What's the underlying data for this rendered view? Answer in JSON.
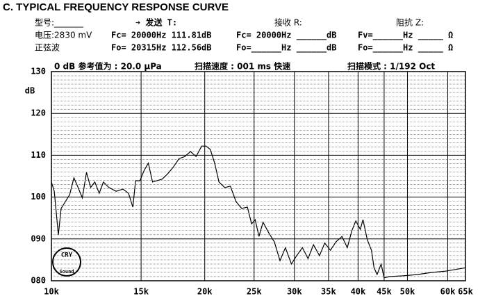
{
  "header": {
    "title": "C. TYPICAL FREQUENCY RESPONSE CURVE",
    "rows": [
      [
        "型号:_______",
        "➔ 发送 T:",
        "接收 R:",
        "阻抗 Z:"
      ],
      [
        "电压:2830 mV",
        "Fc= 20000Hz 111.81dB",
        "Fc= 20000Hz ______dB",
        "Fv=______Hz _____ Ω"
      ],
      [
        "正弦波",
        "Fo= 20315Hz 112.56dB",
        "Fo=______Hz ______dB",
        "Fo=______Hz _____ Ω"
      ]
    ]
  },
  "logo": {
    "top": "CRY",
    "bottom": "Sound"
  },
  "chart_data": {
    "type": "line",
    "annotations": [
      "0 dB 参考值为 :  20.0 µPa",
      "扫描速度 : 001 ms 快速",
      "扫描模式 : 1/192 Oct"
    ],
    "y_label": "dB",
    "xscale": "log",
    "grid": true,
    "xlim": [
      10000,
      65000
    ],
    "xticks": [
      {
        "value": 10000,
        "label": "10k"
      },
      {
        "value": 15000,
        "label": "15k"
      },
      {
        "value": 20000,
        "label": "20k"
      },
      {
        "value": 25000,
        "label": "25k"
      },
      {
        "value": 30000,
        "label": "30k"
      },
      {
        "value": 35000,
        "label": "35k"
      },
      {
        "value": 40000,
        "label": "40k"
      },
      {
        "value": 45000,
        "label": "45k"
      },
      {
        "value": 50000,
        "label": "50k"
      },
      {
        "value": 60000,
        "label": "60k"
      },
      {
        "value": 65000,
        "label": "65k"
      }
    ],
    "ylim": [
      80,
      130
    ],
    "yticks": [
      {
        "value": 80,
        "label": "080"
      },
      {
        "value": 90,
        "label": "090"
      },
      100,
      110,
      120,
      130
    ],
    "x": [
      10000,
      10130,
      10320,
      10450,
      10650,
      10860,
      11070,
      11280,
      11500,
      11720,
      11940,
      12170,
      12410,
      12650,
      12970,
      13390,
      13820,
      14170,
      14450,
      14630,
      14920,
      15210,
      15500,
      15800,
      16500,
      16930,
      17360,
      17810,
      18280,
      18750,
      19230,
      19730,
      20110,
      20510,
      20920,
      21330,
      21890,
      22460,
      23040,
      23640,
      24250,
      24720,
      25120,
      25560,
      26030,
      26700,
      27400,
      28100,
      28800,
      29600,
      30300,
      31100,
      31900,
      32700,
      33600,
      34400,
      35300,
      36200,
      37200,
      38100,
      38900,
      39600,
      40400,
      40900,
      41700,
      42500,
      43000,
      43600,
      44400,
      45000,
      46100,
      49100,
      52400,
      55800,
      59400,
      65000
    ],
    "series": [
      {
        "color": "#000000",
        "values": [
          103.6,
          101.4,
          91.0,
          97.3,
          98.9,
          100.6,
          104.6,
          102.3,
          99.8,
          105.9,
          102.3,
          103.6,
          100.9,
          103.6,
          102.3,
          101.4,
          101.9,
          100.9,
          97.6,
          103.9,
          103.9,
          106.4,
          108.1,
          103.6,
          104.3,
          105.6,
          107.2,
          109.2,
          109.7,
          110.9,
          109.7,
          112.2,
          112.2,
          111.4,
          108.1,
          103.6,
          102.3,
          102.6,
          98.9,
          97.3,
          97.6,
          93.6,
          94.6,
          90.6,
          94.0,
          91.5,
          89.3,
          84.8,
          87.9,
          84.0,
          86.0,
          87.9,
          85.3,
          88.6,
          86.0,
          89.0,
          87.3,
          89.3,
          90.6,
          87.9,
          92.0,
          94.3,
          92.3,
          94.6,
          89.8,
          87.3,
          83.1,
          81.5,
          84.0,
          80.7,
          81.0,
          81.2,
          81.5,
          82.0,
          82.3,
          83.1
        ]
      }
    ]
  }
}
